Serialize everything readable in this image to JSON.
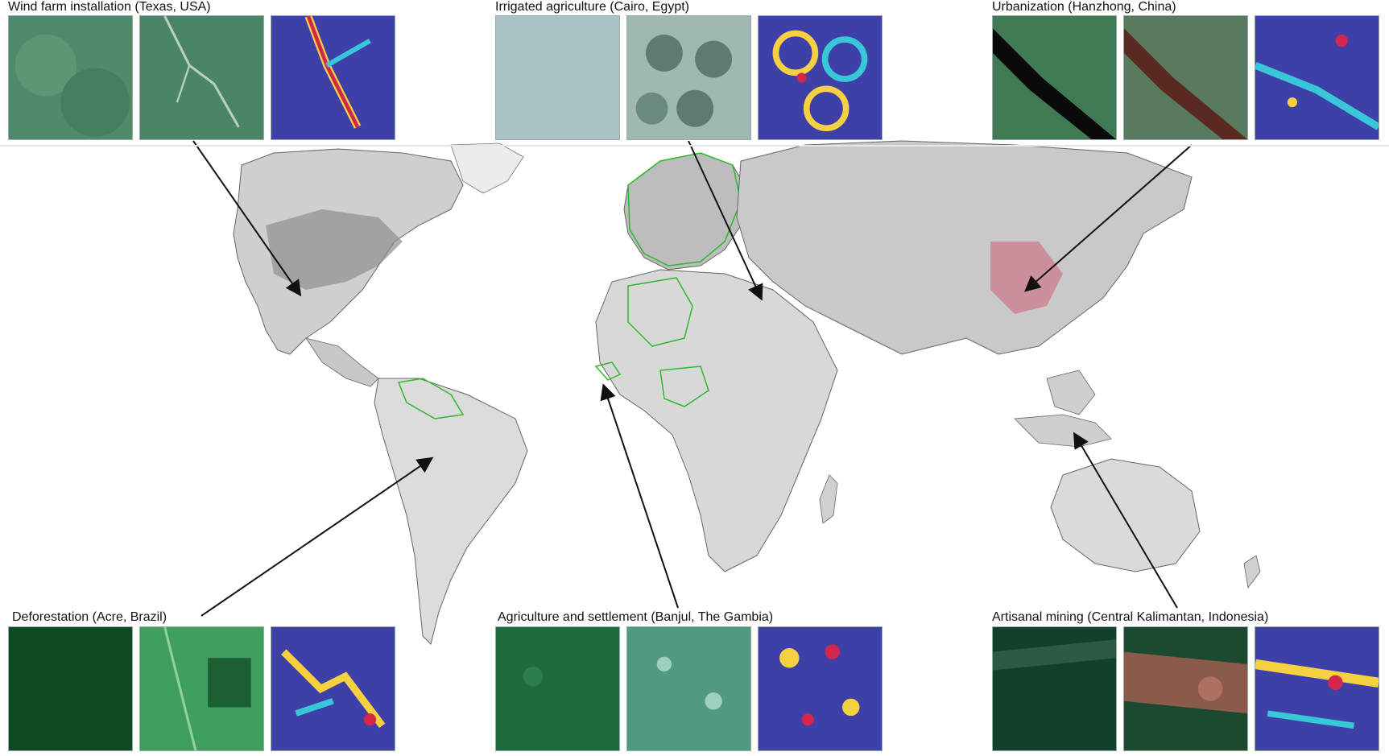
{
  "figure": {
    "panels": [
      {
        "id": "wind-farm",
        "title": "Wind farm installation (Texas, USA)"
      },
      {
        "id": "irrigated",
        "title": "Irrigated agriculture (Cairo, Egypt)"
      },
      {
        "id": "urbanization",
        "title": "Urbanization (Hanzhong, China)"
      },
      {
        "id": "deforestation",
        "title": "Deforestation (Acre, Brazil)"
      },
      {
        "id": "agri-settlement",
        "title": "Agriculture and settlement (Banjul, The Gambia)"
      },
      {
        "id": "mining",
        "title": "Artisanal mining (Central Kalimantan, Indonesia)"
      }
    ],
    "colors": {
      "land": "#d9d9d9",
      "land_dark": "#9e9e9e",
      "ocean": "#ffffff",
      "outline": "#555555",
      "highlight_border": "#2db82d",
      "change_red": "#d2264a",
      "arrow": "#111111",
      "heat_low": "#3f3fa8"
    },
    "icons": [
      "arrow-pointer-icon"
    ]
  }
}
